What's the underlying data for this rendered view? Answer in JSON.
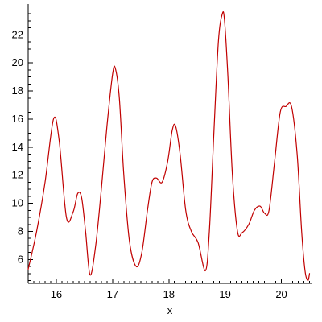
{
  "chart_data": {
    "type": "line",
    "xlabel": "x",
    "ylabel": "",
    "title": "",
    "xlim": [
      15.5,
      20.55
    ],
    "ylim": [
      4.3,
      24.2
    ],
    "x_ticks_major": [
      16,
      17,
      18,
      19,
      20
    ],
    "x_tick_labels": [
      "16",
      "17",
      "18",
      "19",
      "20"
    ],
    "y_ticks_major": [
      6,
      8,
      10,
      12,
      14,
      16,
      18,
      20,
      22
    ],
    "y_tick_labels": [
      "6",
      "8",
      "10",
      "12",
      "14",
      "16",
      "18",
      "20",
      "22"
    ],
    "line_color": "#c00000",
    "grid": false,
    "series": [
      {
        "name": "",
        "x": [
          15.5,
          15.65,
          15.8,
          15.95,
          16.05,
          16.18,
          16.3,
          16.38,
          16.45,
          16.52,
          16.6,
          16.7,
          16.8,
          16.9,
          17.0,
          17.05,
          17.12,
          17.2,
          17.3,
          17.42,
          17.52,
          17.62,
          17.7,
          17.78,
          17.88,
          17.98,
          18.06,
          18.12,
          18.2,
          18.3,
          18.4,
          18.52,
          18.65,
          18.72,
          18.8,
          18.88,
          18.95,
          18.99,
          19.05,
          19.13,
          19.22,
          19.3,
          19.42,
          19.52,
          19.62,
          19.7,
          19.78,
          19.88,
          19.98,
          20.08,
          20.18,
          20.28,
          20.36,
          20.42,
          20.47,
          20.5
        ],
        "y": [
          5.3,
          8.0,
          11.5,
          16.0,
          14.5,
          9.0,
          9.4,
          10.7,
          10.4,
          8.0,
          4.9,
          7.0,
          11.0,
          15.5,
          19.2,
          19.6,
          17.5,
          12.0,
          7.3,
          5.5,
          6.5,
          9.5,
          11.5,
          11.8,
          11.5,
          13.0,
          15.2,
          15.5,
          13.5,
          9.5,
          8.0,
          7.2,
          5.2,
          8.0,
          15.0,
          21.5,
          23.5,
          23.0,
          19.0,
          12.0,
          8.0,
          7.9,
          8.5,
          9.5,
          9.8,
          9.3,
          9.5,
          13.0,
          16.5,
          16.9,
          16.9,
          13.5,
          8.0,
          5.2,
          4.5,
          5.0
        ]
      }
    ]
  }
}
